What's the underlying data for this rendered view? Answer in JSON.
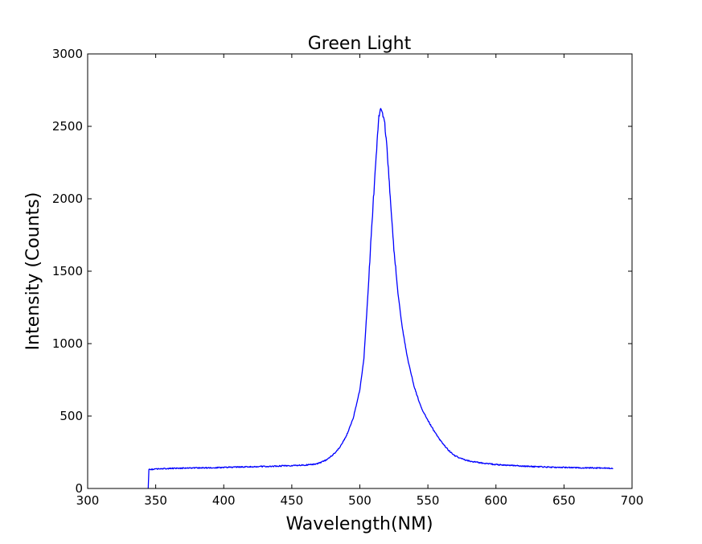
{
  "chart_data": {
    "type": "line",
    "title": "Green Light",
    "xlabel": "Wavelength(NM)",
    "ylabel": "Intensity (Counts)",
    "xlim": [
      300,
      700
    ],
    "ylim": [
      0,
      3000
    ],
    "xticks": [
      300,
      350,
      400,
      450,
      500,
      550,
      600,
      650,
      700
    ],
    "yticks": [
      0,
      500,
      1000,
      1500,
      2000,
      2500,
      3000
    ],
    "grid": false,
    "series": [
      {
        "color": "#0000ff",
        "x": [
          344.5,
          345,
          350,
          360,
          370,
          380,
          390,
          400,
          410,
          420,
          430,
          440,
          450,
          455,
          460,
          465,
          470,
          475,
          480,
          485,
          490,
          495,
          500,
          503,
          506,
          509,
          512,
          514,
          515,
          516,
          518,
          520,
          522,
          525,
          528,
          531,
          535,
          540,
          545,
          550,
          555,
          560,
          565,
          570,
          575,
          580,
          590,
          600,
          610,
          620,
          630,
          640,
          650,
          660,
          670,
          680,
          686
        ],
        "values": [
          0,
          130,
          135,
          138,
          140,
          142,
          143,
          145,
          148,
          150,
          152,
          155,
          158,
          160,
          162,
          165,
          175,
          195,
          230,
          280,
          360,
          480,
          680,
          900,
          1350,
          1850,
          2300,
          2560,
          2620,
          2610,
          2550,
          2350,
          2050,
          1650,
          1350,
          1120,
          900,
          700,
          560,
          470,
          390,
          320,
          265,
          225,
          205,
          190,
          175,
          165,
          160,
          155,
          150,
          147,
          145,
          143,
          142,
          141,
          140
        ]
      }
    ]
  }
}
